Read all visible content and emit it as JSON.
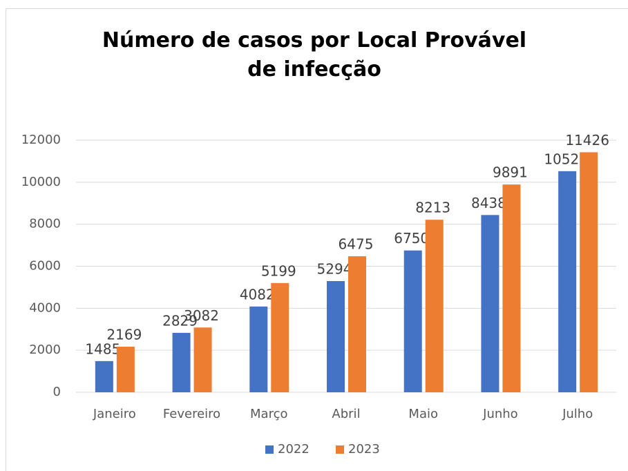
{
  "chart_data": {
    "type": "bar",
    "title": "Número de casos por Local Provável de infecção",
    "categories": [
      "Janeiro",
      "Fevereiro",
      "Março",
      "Abril",
      "Maio",
      "Junho",
      "Julho"
    ],
    "series": [
      {
        "name": "2022",
        "color": "#4472c4",
        "values": [
          1485,
          2829,
          4082,
          5294,
          6750,
          8438,
          10525
        ]
      },
      {
        "name": "2023",
        "color": "#ed7d31",
        "values": [
          2169,
          3082,
          5199,
          6475,
          8213,
          9891,
          11426
        ]
      }
    ],
    "ylim": [
      0,
      12000
    ],
    "yticks": [
      0,
      2000,
      4000,
      6000,
      8000,
      10000,
      12000
    ],
    "grid": true,
    "legend": "bottom"
  }
}
